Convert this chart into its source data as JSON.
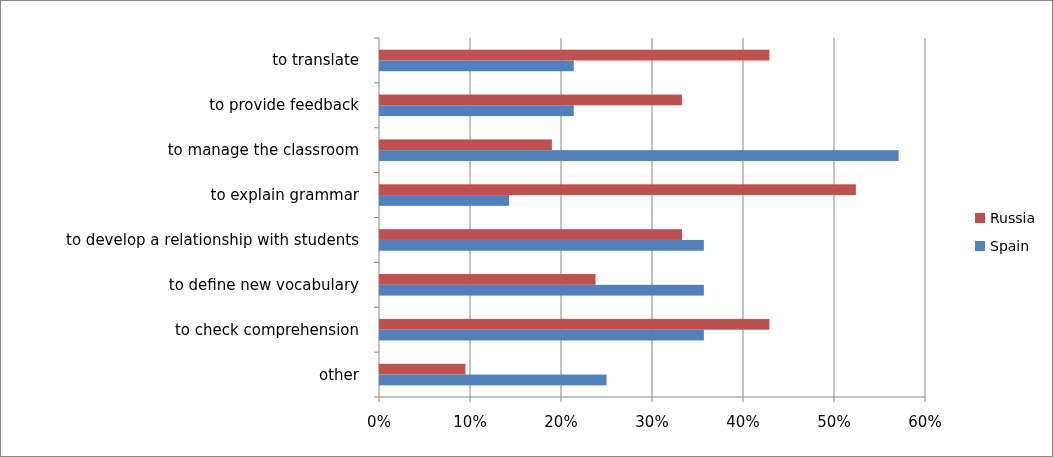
{
  "chart_data": {
    "type": "bar",
    "orientation": "horizontal",
    "categories": [
      "to translate",
      "to provide feedback",
      "to manage the classroom",
      "to explain grammar",
      "to develop a relationship with students",
      "to define new vocabulary",
      "to check comprehension",
      "other"
    ],
    "series": [
      {
        "name": "Russia",
        "color": "#c0504d",
        "values": [
          42.9,
          33.3,
          19.0,
          52.4,
          33.3,
          23.8,
          42.9,
          9.5
        ]
      },
      {
        "name": "Spain",
        "color": "#4f81bd",
        "values": [
          21.4,
          21.4,
          57.1,
          14.3,
          35.7,
          35.7,
          35.7,
          25.0
        ]
      }
    ],
    "xlim": [
      0,
      60
    ],
    "xticks": [
      {
        "value": 0,
        "label": "0%"
      },
      {
        "value": 10,
        "label": "10%"
      },
      {
        "value": 20,
        "label": "20%"
      },
      {
        "value": 30,
        "label": "30%"
      },
      {
        "value": 40,
        "label": "40%"
      },
      {
        "value": 50,
        "label": "50%"
      },
      {
        "value": 60,
        "label": "60%"
      }
    ],
    "grid": "x",
    "legend": "right"
  }
}
